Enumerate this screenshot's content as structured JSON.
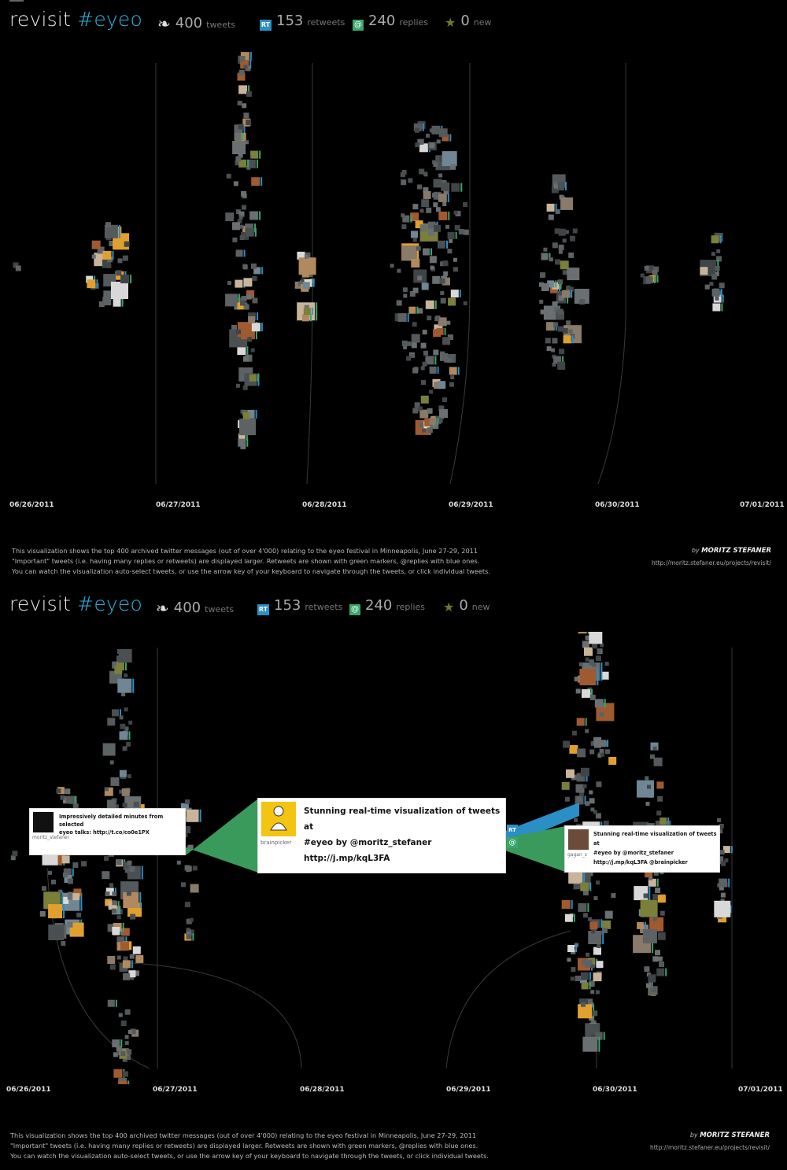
{
  "header": {
    "title_prefix": "revisit ",
    "title_tag": "#eyeo",
    "stats": [
      {
        "id": "tweets",
        "icon": "twitter-bird-icon",
        "value": "400",
        "label": "tweets"
      },
      {
        "id": "retweets",
        "icon": "retweet-icon",
        "icon_text": "RT",
        "value": "153",
        "label": "retweets"
      },
      {
        "id": "replies",
        "icon": "reply-icon",
        "icon_text": "@",
        "value": "240",
        "label": "replies"
      },
      {
        "id": "new",
        "icon": "star-icon",
        "value": "0",
        "label": "new"
      }
    ]
  },
  "timeline": {
    "dates": [
      "06/26/2011",
      "06/27/2011",
      "06/28/2011",
      "06/29/2011",
      "06/30/2011",
      "07/01/2011"
    ]
  },
  "description": {
    "lines": [
      "This visualization shows the top 400 archived twitter messages (out of over 4'000) relating to the eyeo festival in Minneapolis, June 27-29, 2011",
      "\"Important\" tweets (i.e. having many replies or retweets) are displayed larger. Retweets are shown with green markers, @replies with blue ones.",
      "You can watch the visualization auto-select tweets, or use the arrow key of your keyboard to navigate through the tweets, or click individual tweets."
    ]
  },
  "credit": {
    "by": "by",
    "name": "MORITZ STEFANER",
    "url": "http://moritz.stefaner.eu/projects/revisit/"
  },
  "selection": {
    "main_tweet": {
      "user": "brainpicker",
      "text_lines": [
        "Stunning real-time visualization of tweets at",
        "#eyeo by @moritz_stefaner",
        "http://j.mp/kqL3FA"
      ]
    },
    "reply_to_tweet": {
      "user": "moritz_stefaner",
      "text_lines": [
        "Impressively detailed minutes from selected",
        "eyeo talks: http://t.co/co0e1PX"
      ]
    },
    "retweet": {
      "user": "gagan_s",
      "text_lines": [
        "Stunning real-time visualization of tweets at",
        "#eyeo by @moritz_stefaner",
        "http://j.mp/kqL3FA @brainpicker"
      ]
    },
    "marker_rt": "RT",
    "marker_at": "@"
  },
  "colors": {
    "background": "#000000",
    "accent": "#2bb3e0",
    "retweet_marker": "#3aa66a",
    "reply_marker": "#2a8fc4",
    "tile": "#4a4f52"
  }
}
